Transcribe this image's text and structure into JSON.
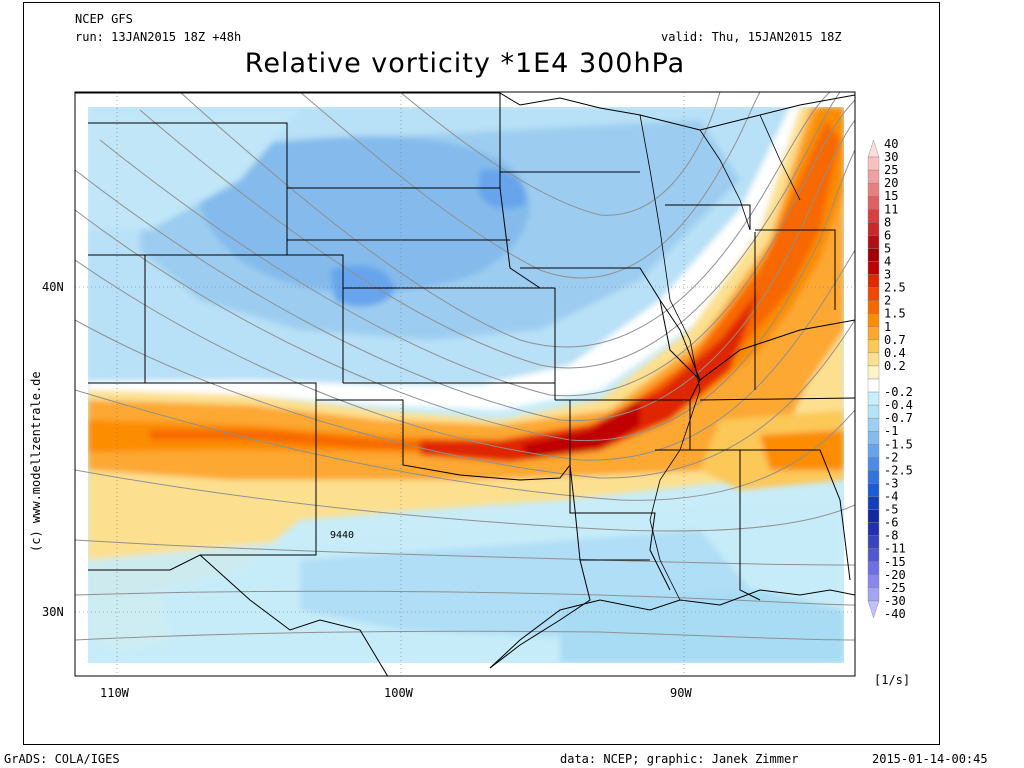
{
  "header": {
    "model": "NCEP GFS",
    "run": "run: 13JAN2015 18Z +48h",
    "valid": "valid: Thu, 15JAN2015 18Z",
    "title": "Relative vorticity *1E4 300hPa"
  },
  "map": {
    "lon_labels": [
      "110W",
      "100W",
      "90W"
    ],
    "lat_labels": [
      "40N",
      "30N"
    ],
    "contour_label": "9440",
    "units": "[1/s]",
    "watermark": "(c) www.modellzentrale.de"
  },
  "colorbar": {
    "levels": [
      "40",
      "30",
      "25",
      "20",
      "15",
      "11",
      "8",
      "6",
      "5",
      "4",
      "3",
      "2.5",
      "2",
      "1.5",
      "1",
      "0.7",
      "0.4",
      "0.2",
      "-0.2",
      "-0.4",
      "-0.7",
      "-1",
      "-1.5",
      "-2",
      "-2.5",
      "-3",
      "-4",
      "-5",
      "-6",
      "-8",
      "-11",
      "-15",
      "-20",
      "-25",
      "-30",
      "-40"
    ],
    "colors": [
      "#fcdcdc",
      "#f8c0c0",
      "#f0a0a0",
      "#e88080",
      "#e06060",
      "#d84040",
      "#c82828",
      "#b01010",
      "#a00000",
      "#c00000",
      "#e02800",
      "#f04800",
      "#f86800",
      "#fc8c00",
      "#fca830",
      "#fcc858",
      "#fce090",
      "#fff4c8",
      "#ffffff",
      "#c8f0fc",
      "#b4e4f8",
      "#9cd0f4",
      "#84bcf0",
      "#68a4ec",
      "#4c8ce4",
      "#3074dc",
      "#1c5cd4",
      "#1040b8",
      "#1028a0",
      "#2030b0",
      "#3844c0",
      "#5058d0",
      "#6c70e0",
      "#8888ec",
      "#a4a4f4",
      "#c0c0fc"
    ]
  },
  "footer": {
    "left": "GrADS: COLA/IGES",
    "center": "data: NCEP; graphic: Janek Zimmer",
    "right": "2015-01-14-00:45"
  }
}
